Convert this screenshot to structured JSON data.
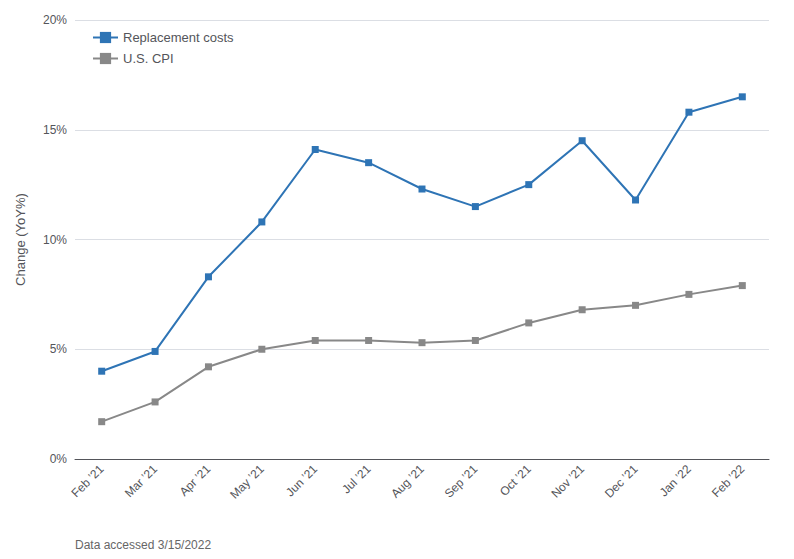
{
  "chart_data": {
    "type": "line",
    "ylabel": "Change (YoY%)",
    "annotations": [
      "Data accessed 3/15/2022"
    ],
    "categories": [
      "Feb ’21",
      "Mar ’21",
      "Apr ’21",
      "May ’21",
      "Jun ’21",
      "Jul ’21",
      "Aug ’21",
      "Sep ’21",
      "Oct ’21",
      "Nov ’21",
      "Dec ’21",
      "Jan ’22",
      "Feb ’22"
    ],
    "series": [
      {
        "name": "Replacement costs",
        "color": "#2E74B5",
        "values": [
          4.0,
          4.9,
          8.3,
          10.8,
          14.1,
          13.5,
          12.3,
          11.5,
          12.5,
          14.5,
          11.8,
          15.8,
          16.5
        ]
      },
      {
        "name": "U.S. CPI",
        "color": "#888888",
        "values": [
          1.7,
          2.6,
          4.2,
          5.0,
          5.4,
          5.4,
          5.3,
          5.4,
          6.2,
          6.8,
          7.0,
          7.5,
          7.9
        ]
      }
    ],
    "ylim": [
      0,
      20
    ],
    "yticks": [
      {
        "value": 0,
        "label": "0%"
      },
      {
        "value": 5,
        "label": "5%"
      },
      {
        "value": 10,
        "label": "10%"
      },
      {
        "value": 15,
        "label": "15%"
      },
      {
        "value": 20,
        "label": "20%"
      }
    ],
    "grid": true,
    "legend": "upper left",
    "marker": "square"
  }
}
